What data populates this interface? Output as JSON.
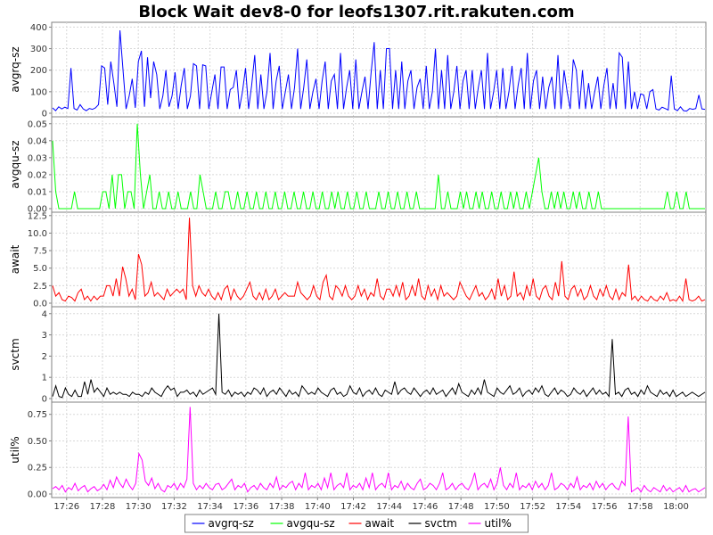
{
  "chart_data": {
    "type": "line",
    "title": "Block Wait dev8-0 for leofs1307.rit.rakuten.com",
    "x_tick_labels": [
      "17:26",
      "17:28",
      "17:30",
      "17:32",
      "17:34",
      "17:36",
      "17:38",
      "17:40",
      "17:42",
      "17:44",
      "17:46",
      "17:48",
      "17:50",
      "17:52",
      "17:54",
      "17:56",
      "17:58",
      "18:00"
    ],
    "x_range": [
      "17:25:10",
      "18:01:40"
    ],
    "legend_position": "bottom-center",
    "grid": true,
    "panels": [
      {
        "series": "avgrq-sz",
        "ylabel": "avgrq-sz",
        "color": "#0000ff",
        "ylim": [
          0,
          410
        ],
        "yticks": [
          0,
          100,
          200,
          300,
          400
        ],
        "ytick_labels": [
          "0",
          "100",
          "200",
          "300",
          "400"
        ],
        "values": [
          25,
          12,
          30,
          20,
          28,
          22,
          210,
          22,
          15,
          40,
          20,
          12,
          22,
          18,
          25,
          40,
          220,
          210,
          40,
          240,
          140,
          30,
          385,
          200,
          20,
          80,
          160,
          25,
          240,
          290,
          30,
          260,
          70,
          240,
          180,
          20,
          80,
          200,
          30,
          80,
          190,
          20,
          130,
          210,
          20,
          80,
          230,
          220,
          20,
          225,
          220,
          20,
          100,
          180,
          20,
          215,
          215,
          20,
          110,
          120,
          200,
          20,
          100,
          210,
          20,
          130,
          270,
          20,
          180,
          20,
          100,
          280,
          20,
          150,
          220,
          20,
          100,
          180,
          20,
          120,
          300,
          20,
          120,
          250,
          20,
          100,
          160,
          20,
          150,
          240,
          20,
          150,
          180,
          20,
          280,
          20,
          120,
          200,
          20,
          250,
          20,
          100,
          170,
          20,
          190,
          330,
          20,
          200,
          20,
          300,
          300,
          20,
          200,
          20,
          240,
          20,
          150,
          200,
          20,
          120,
          160,
          20,
          220,
          20,
          100,
          300,
          20,
          200,
          20,
          270,
          20,
          100,
          220,
          20,
          150,
          200,
          20,
          200,
          20,
          120,
          200,
          20,
          280,
          20,
          100,
          200,
          20,
          210,
          20,
          100,
          220,
          20,
          130,
          210,
          20,
          280,
          20,
          150,
          200,
          20,
          170,
          20,
          120,
          170,
          20,
          270,
          20,
          200,
          100,
          20,
          250,
          200,
          20,
          200,
          20,
          140,
          20,
          100,
          170,
          20,
          130,
          210,
          20,
          140,
          20,
          280,
          260,
          20,
          240,
          20,
          100,
          20,
          90,
          85,
          20,
          100,
          110,
          20,
          15,
          28,
          22,
          15,
          175,
          20,
          12,
          30,
          12,
          10,
          22,
          18,
          22,
          85,
          20,
          18
        ]
      },
      {
        "series": "avgqu-sz",
        "ylabel": "avgqu-sz",
        "color": "#00ff00",
        "ylim": [
          0,
          0.0525
        ],
        "yticks": [
          0,
          0.01,
          0.02,
          0.03,
          0.04,
          0.05
        ],
        "ytick_labels": [
          "0.00",
          "0.01",
          "0.02",
          "0.03",
          "0.04",
          "0.05"
        ],
        "values": [
          0.04,
          0.01,
          0,
          0,
          0,
          0,
          0,
          0.01,
          0,
          0,
          0,
          0,
          0,
          0,
          0,
          0,
          0.01,
          0.01,
          0,
          0.02,
          0,
          0.02,
          0.02,
          0,
          0.01,
          0.01,
          0,
          0.05,
          0.02,
          0,
          0.01,
          0.02,
          0,
          0,
          0.01,
          0,
          0,
          0.01,
          0,
          0,
          0.01,
          0,
          0,
          0,
          0.01,
          0,
          0,
          0.02,
          0.01,
          0,
          0,
          0,
          0.01,
          0,
          0,
          0.01,
          0.01,
          0,
          0,
          0.01,
          0,
          0,
          0.01,
          0,
          0,
          0.01,
          0,
          0,
          0.01,
          0,
          0,
          0.01,
          0,
          0,
          0.01,
          0,
          0,
          0.01,
          0,
          0,
          0.01,
          0,
          0,
          0.01,
          0,
          0,
          0.01,
          0,
          0,
          0.01,
          0,
          0.01,
          0,
          0,
          0.01,
          0,
          0,
          0.01,
          0,
          0,
          0.01,
          0,
          0,
          0,
          0.01,
          0,
          0,
          0.01,
          0,
          0,
          0.01,
          0,
          0,
          0.01,
          0,
          0,
          0.01,
          0,
          0,
          0,
          0,
          0,
          0,
          0.02,
          0,
          0,
          0.01,
          0,
          0,
          0,
          0.01,
          0,
          0.01,
          0,
          0,
          0.01,
          0,
          0.01,
          0,
          0,
          0.01,
          0,
          0,
          0.01,
          0,
          0,
          0.01,
          0,
          0.01,
          0,
          0,
          0.01,
          0,
          0.01,
          0.02,
          0.03,
          0.01,
          0,
          0,
          0.01,
          0,
          0.01,
          0,
          0.01,
          0,
          0,
          0.01,
          0,
          0.01,
          0,
          0,
          0.01,
          0,
          0,
          0.01,
          0,
          0,
          0,
          0,
          0,
          0,
          0,
          0,
          0,
          0,
          0,
          0,
          0,
          0,
          0,
          0,
          0,
          0,
          0,
          0,
          0,
          0.01,
          0,
          0,
          0.01,
          0,
          0,
          0.01,
          0,
          0,
          0,
          0,
          0,
          0
        ]
      },
      {
        "series": "await",
        "ylabel": "await",
        "color": "#ff0000",
        "ylim": [
          0,
          12.6
        ],
        "yticks": [
          0,
          2.5,
          5,
          7.5,
          10,
          12.5
        ],
        "ytick_labels": [
          "0.0",
          "2.5",
          "5.0",
          "7.5",
          "10.0",
          "12.5"
        ],
        "values": [
          2.5,
          1,
          1.5,
          0.5,
          0.3,
          1,
          0.8,
          0.3,
          1.5,
          2,
          0.5,
          1,
          0.3,
          1,
          0.5,
          1,
          1,
          2.5,
          2.5,
          1,
          3.5,
          1,
          5.2,
          3.5,
          1,
          2,
          0.5,
          7,
          5.5,
          1,
          1.5,
          3,
          1,
          1.5,
          1,
          0.5,
          2,
          1,
          1.5,
          2,
          1.5,
          2,
          0.5,
          12.2,
          2.5,
          1,
          2.5,
          1.5,
          1,
          2,
          1,
          0.5,
          1.5,
          0.5,
          2,
          2.5,
          0.5,
          2,
          1,
          0.5,
          1,
          2,
          3,
          1,
          0.5,
          1.5,
          0.5,
          2,
          0.5,
          1,
          2,
          0.5,
          1,
          1.5,
          1,
          1,
          1,
          3,
          1.5,
          1,
          0.5,
          1,
          2.5,
          1,
          0.5,
          3,
          4,
          1,
          0.5,
          2.5,
          2,
          1,
          2.5,
          1,
          0.5,
          1,
          2.5,
          1,
          2,
          0.5,
          1.5,
          1,
          3.5,
          1,
          0.5,
          2,
          2,
          1,
          2.5,
          1,
          3,
          0.5,
          1,
          2.5,
          1,
          3.5,
          1,
          0.5,
          2.5,
          1,
          2,
          0.5,
          2.5,
          1,
          1.5,
          1,
          0.5,
          1,
          3,
          2,
          1,
          0.5,
          1.5,
          2.5,
          1,
          1.5,
          0.5,
          1,
          2,
          0.5,
          3.5,
          1,
          2.5,
          0.5,
          1,
          4.5,
          1,
          1.5,
          0.5,
          2.5,
          1,
          3.5,
          1,
          0.5,
          2,
          2.5,
          1,
          0.5,
          3,
          1,
          6,
          1,
          0.5,
          2,
          2.5,
          1,
          2,
          0.5,
          1,
          2.5,
          1,
          0.5,
          2,
          1,
          2.5,
          1,
          0.5,
          2,
          0.5,
          1.5,
          1,
          5.5,
          0.5,
          1,
          0.3,
          1,
          0.5,
          0.3,
          1,
          0.5,
          0.3,
          1,
          0.5,
          1.5,
          0.3,
          0.5,
          0.3,
          1,
          0.3,
          3.5,
          0.5,
          0.3,
          0.5,
          1,
          0.3,
          0.5
        ]
      },
      {
        "series": "svctm",
        "ylabel": "svctm",
        "color": "#000000",
        "ylim": [
          0,
          4.2
        ],
        "yticks": [
          0,
          1,
          2,
          3,
          4
        ],
        "ytick_labels": [
          "0",
          "1",
          "2",
          "3",
          "4"
        ],
        "values": [
          0.1,
          0.6,
          0.1,
          0.05,
          0.5,
          0.2,
          0.1,
          0.4,
          0.1,
          0.1,
          0.8,
          0.2,
          0.9,
          0.3,
          0.5,
          0.3,
          0.1,
          0.5,
          0.2,
          0.3,
          0.2,
          0.3,
          0.2,
          0.2,
          0.1,
          0.3,
          0.2,
          0.2,
          0.1,
          0.3,
          0.2,
          0.5,
          0.3,
          0.2,
          0.1,
          0.4,
          0.6,
          0.4,
          0.5,
          0.1,
          0.3,
          0.3,
          0.4,
          0.2,
          0.3,
          0.1,
          0.4,
          0.2,
          0.3,
          0.4,
          0.5,
          0.2,
          4.0,
          0.3,
          0.2,
          0.4,
          0.1,
          0.3,
          0.2,
          0.3,
          0.1,
          0.3,
          0.2,
          0.5,
          0.4,
          0.2,
          0.5,
          0.1,
          0.3,
          0.4,
          0.2,
          0.5,
          0.3,
          0.1,
          0.4,
          0.2,
          0.3,
          0.1,
          0.6,
          0.4,
          0.2,
          0.3,
          0.2,
          0.5,
          0.3,
          0.2,
          0.1,
          0.4,
          0.5,
          0.2,
          0.3,
          0.1,
          0.2,
          0.6,
          0.3,
          0.2,
          0.5,
          0.1,
          0.3,
          0.4,
          0.2,
          0.5,
          0.2,
          0.1,
          0.4,
          0.3,
          0.2,
          0.8,
          0.2,
          0.4,
          0.5,
          0.3,
          0.2,
          0.5,
          0.3,
          0.1,
          0.3,
          0.4,
          0.2,
          0.5,
          0.2,
          0.3,
          0.4,
          0.1,
          0.3,
          0.5,
          0.2,
          0.7,
          0.3,
          0.2,
          0.1,
          0.4,
          0.2,
          0.5,
          0.2,
          0.9,
          0.3,
          0.2,
          0.1,
          0.5,
          0.3,
          0.2,
          0.4,
          0.6,
          0.2,
          0.3,
          0.5,
          0.1,
          0.3,
          0.4,
          0.2,
          0.5,
          0.3,
          0.6,
          0.2,
          0.1,
          0.3,
          0.5,
          0.2,
          0.4,
          0.3,
          0.1,
          0.2,
          0.5,
          0.3,
          0.2,
          0.4,
          0.1,
          0.3,
          0.5,
          0.2,
          0.4,
          0.2,
          0.3,
          0.1,
          2.8,
          0.2,
          0.3,
          0.1,
          0.4,
          0.5,
          0.2,
          0.3,
          0.1,
          0.4,
          0.2,
          0.6,
          0.3,
          0.2,
          0.1,
          0.4,
          0.2,
          0.3,
          0.1,
          0.4,
          0.1,
          0.2,
          0.3,
          0.1,
          0.2,
          0.3,
          0.2,
          0.1,
          0.2,
          0.3
        ]
      },
      {
        "series": "util%",
        "ylabel": "util%",
        "color": "#ff00ff",
        "ylim": [
          0,
          0.84
        ],
        "yticks": [
          0,
          0.25,
          0.5,
          0.75
        ],
        "ytick_labels": [
          "0.00",
          "0.25",
          "0.50",
          "0.75"
        ],
        "values": [
          0.05,
          0.07,
          0.04,
          0.08,
          0.02,
          0.06,
          0.04,
          0.1,
          0.03,
          0.06,
          0.08,
          0.02,
          0.05,
          0.07,
          0.03,
          0.05,
          0.09,
          0.04,
          0.13,
          0.06,
          0.16,
          0.1,
          0.06,
          0.14,
          0.08,
          0.04,
          0.1,
          0.38,
          0.32,
          0.12,
          0.08,
          0.15,
          0.05,
          0.1,
          0.04,
          0.02,
          0.08,
          0.06,
          0.1,
          0.04,
          0.1,
          0.06,
          0.14,
          0.82,
          0.1,
          0.04,
          0.08,
          0.05,
          0.1,
          0.06,
          0.04,
          0.09,
          0.1,
          0.04,
          0.06,
          0.1,
          0.14,
          0.04,
          0.08,
          0.06,
          0.1,
          0.02,
          0.06,
          0.08,
          0.04,
          0.1,
          0.06,
          0.04,
          0.1,
          0.06,
          0.16,
          0.04,
          0.08,
          0.06,
          0.1,
          0.12,
          0.04,
          0.1,
          0.06,
          0.2,
          0.04,
          0.08,
          0.06,
          0.1,
          0.04,
          0.15,
          0.06,
          0.2,
          0.04,
          0.08,
          0.1,
          0.06,
          0.2,
          0.04,
          0.08,
          0.06,
          0.1,
          0.04,
          0.15,
          0.06,
          0.2,
          0.04,
          0.08,
          0.1,
          0.06,
          0.2,
          0.04,
          0.08,
          0.06,
          0.12,
          0.04,
          0.1,
          0.06,
          0.04,
          0.1,
          0.14,
          0.04,
          0.06,
          0.1,
          0.08,
          0.04,
          0.1,
          0.2,
          0.04,
          0.06,
          0.1,
          0.04,
          0.08,
          0.1,
          0.06,
          0.04,
          0.1,
          0.2,
          0.04,
          0.08,
          0.1,
          0.06,
          0.14,
          0.04,
          0.1,
          0.25,
          0.08,
          0.04,
          0.1,
          0.06,
          0.2,
          0.04,
          0.08,
          0.06,
          0.1,
          0.04,
          0.12,
          0.06,
          0.1,
          0.04,
          0.08,
          0.2,
          0.04,
          0.06,
          0.1,
          0.08,
          0.04,
          0.1,
          0.06,
          0.16,
          0.04,
          0.08,
          0.06,
          0.1,
          0.04,
          0.12,
          0.06,
          0.1,
          0.04,
          0.08,
          0.1,
          0.06,
          0.04,
          0.12,
          0.08,
          0.73,
          0.02,
          0.04,
          0.06,
          0.02,
          0.08,
          0.04,
          0.02,
          0.06,
          0.04,
          0.02,
          0.08,
          0.03,
          0.06,
          0.02,
          0.04,
          0.06,
          0.02,
          0.08,
          0.02,
          0.04,
          0.05,
          0.02,
          0.04,
          0.06
        ]
      }
    ],
    "legend": [
      "avgrq-sz",
      "avgqu-sz",
      "await",
      "svctm",
      "util%"
    ]
  }
}
